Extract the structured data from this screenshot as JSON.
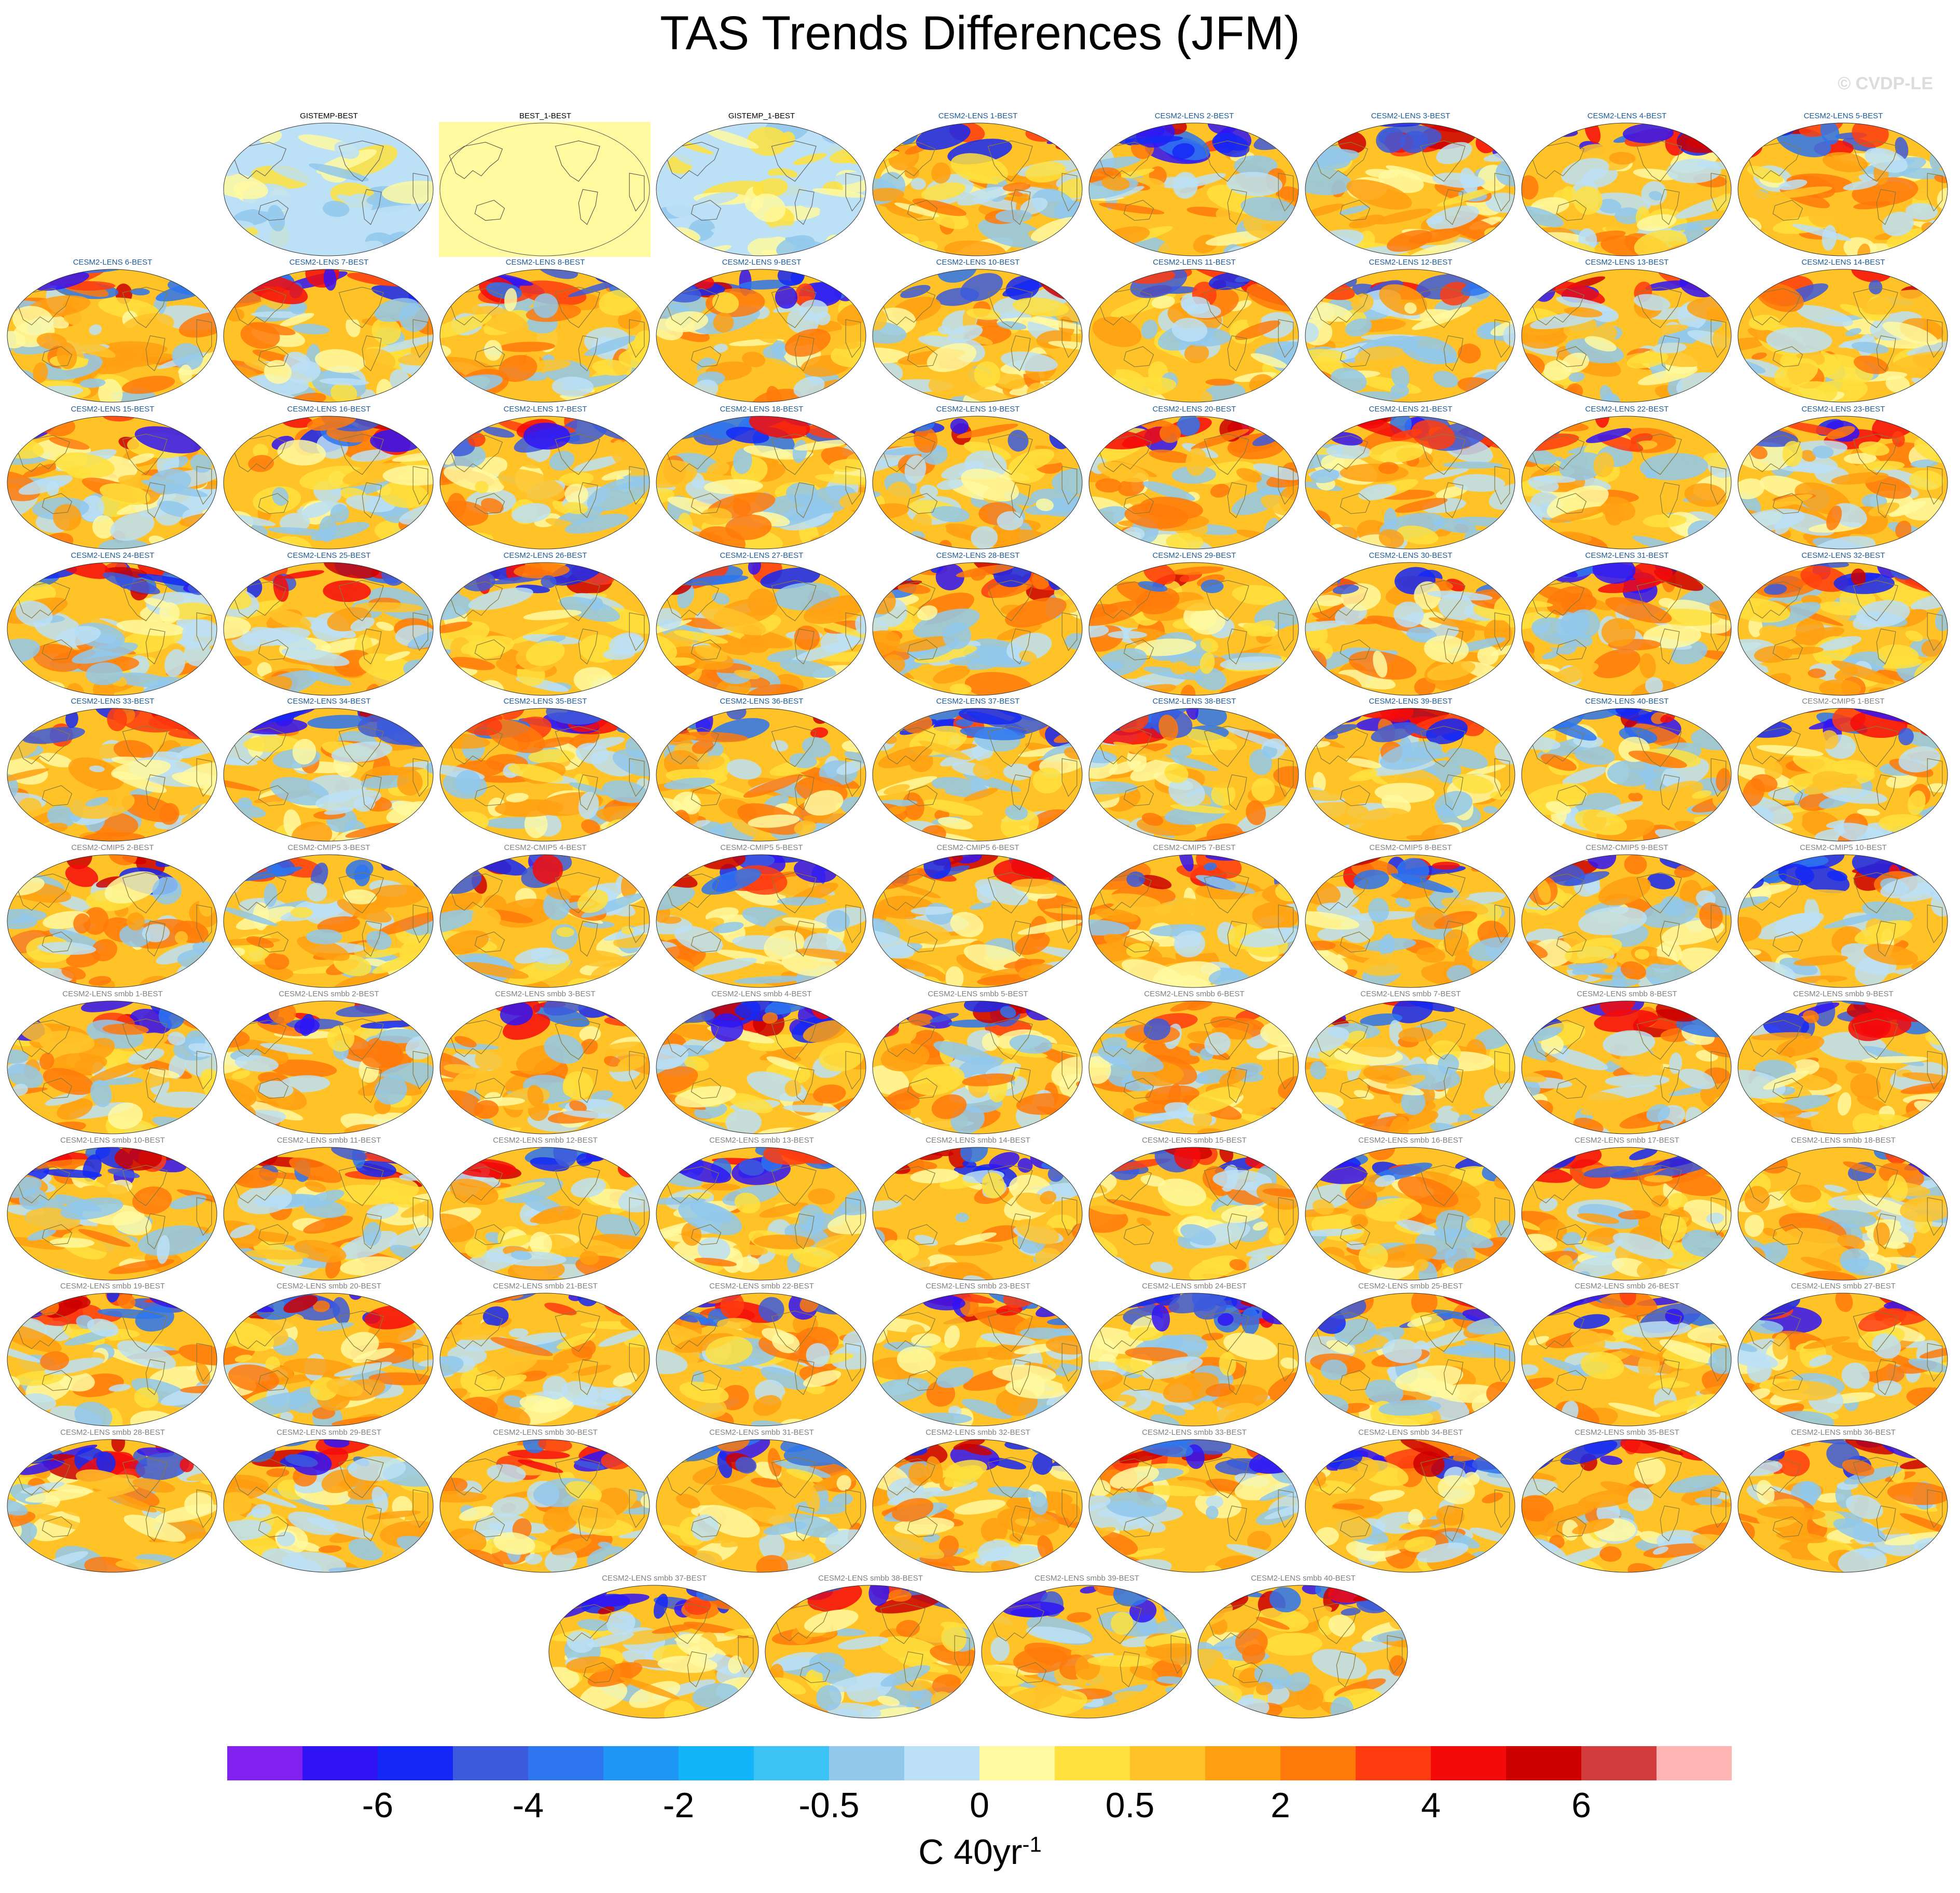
{
  "title": "TAS Trends Differences (JFM)",
  "watermark": "© CVDP-LE",
  "colorbar": {
    "labels": [
      "-6",
      "-4",
      "-2",
      "-0.5",
      "0",
      "0.5",
      "2",
      "4",
      "6"
    ],
    "units": "C 40yr",
    "units_exponent": "-1",
    "colors": [
      "#8220f0",
      "#3014f5",
      "#1428f5",
      "#3c5adc",
      "#2d76f0",
      "#1e96f5",
      "#12b4fa",
      "#3cc3f5",
      "#91c8ec",
      "#bce1f6",
      "#fff9a0",
      "#ffe03c",
      "#ffc328",
      "#ffa010",
      "#ff7a0a",
      "#ff3c0f",
      "#f50a0a",
      "#cd0000",
      "#d23c3c",
      "#ffb4b4"
    ]
  },
  "title_colors": {
    "obs": "#000000",
    "lens": "#1e5a96",
    "other": "#808080"
  },
  "panels": {
    "row1": [
      "GISTEMP-BEST",
      "BEST_1-BEST",
      "GISTEMP_1-BEST",
      "CESM2-LENS 1-BEST",
      "CESM2-LENS 2-BEST",
      "CESM2-LENS 3-BEST",
      "CESM2-LENS 4-BEST",
      "CESM2-LENS 5-BEST"
    ],
    "lens": [
      "CESM2-LENS 6-BEST",
      "CESM2-LENS 7-BEST",
      "CESM2-LENS 8-BEST",
      "CESM2-LENS 9-BEST",
      "CESM2-LENS 10-BEST",
      "CESM2-LENS 11-BEST",
      "CESM2-LENS 12-BEST",
      "CESM2-LENS 13-BEST",
      "CESM2-LENS 14-BEST",
      "CESM2-LENS 15-BEST",
      "CESM2-LENS 16-BEST",
      "CESM2-LENS 17-BEST",
      "CESM2-LENS 18-BEST",
      "CESM2-LENS 19-BEST",
      "CESM2-LENS 20-BEST",
      "CESM2-LENS 21-BEST",
      "CESM2-LENS 22-BEST",
      "CESM2-LENS 23-BEST",
      "CESM2-LENS 24-BEST",
      "CESM2-LENS 25-BEST",
      "CESM2-LENS 26-BEST",
      "CESM2-LENS 27-BEST",
      "CESM2-LENS 28-BEST",
      "CESM2-LENS 29-BEST",
      "CESM2-LENS 30-BEST",
      "CESM2-LENS 31-BEST",
      "CESM2-LENS 32-BEST",
      "CESM2-LENS 33-BEST",
      "CESM2-LENS 34-BEST",
      "CESM2-LENS 35-BEST",
      "CESM2-LENS 36-BEST",
      "CESM2-LENS 37-BEST",
      "CESM2-LENS 38-BEST",
      "CESM2-LENS 39-BEST",
      "CESM2-LENS 40-BEST"
    ],
    "cmip5": [
      "CESM2-CMIP5 1-BEST",
      "CESM2-CMIP5 2-BEST",
      "CESM2-CMIP5 3-BEST",
      "CESM2-CMIP5 4-BEST",
      "CESM2-CMIP5 5-BEST",
      "CESM2-CMIP5 6-BEST",
      "CESM2-CMIP5 7-BEST",
      "CESM2-CMIP5 8-BEST",
      "CESM2-CMIP5 9-BEST",
      "CESM2-CMIP5 10-BEST"
    ],
    "smbb": [
      "CESM2-LENS smbb 1-BEST",
      "CESM2-LENS smbb 2-BEST",
      "CESM2-LENS smbb 3-BEST",
      "CESM2-LENS smbb 4-BEST",
      "CESM2-LENS smbb 5-BEST",
      "CESM2-LENS smbb 6-BEST",
      "CESM2-LENS smbb 7-BEST",
      "CESM2-LENS smbb 8-BEST",
      "CESM2-LENS smbb 9-BEST",
      "CESM2-LENS smbb 10-BEST",
      "CESM2-LENS smbb 11-BEST",
      "CESM2-LENS smbb 12-BEST",
      "CESM2-LENS smbb 13-BEST",
      "CESM2-LENS smbb 14-BEST",
      "CESM2-LENS smbb 15-BEST",
      "CESM2-LENS smbb 16-BEST",
      "CESM2-LENS smbb 17-BEST",
      "CESM2-LENS smbb 18-BEST",
      "CESM2-LENS smbb 19-BEST",
      "CESM2-LENS smbb 20-BEST",
      "CESM2-LENS smbb 21-BEST",
      "CESM2-LENS smbb 22-BEST",
      "CESM2-LENS smbb 23-BEST",
      "CESM2-LENS smbb 24-BEST",
      "CESM2-LENS smbb 25-BEST",
      "CESM2-LENS smbb 26-BEST",
      "CESM2-LENS smbb 27-BEST",
      "CESM2-LENS smbb 28-BEST",
      "CESM2-LENS smbb 29-BEST",
      "CESM2-LENS smbb 30-BEST",
      "CESM2-LENS smbb 31-BEST",
      "CESM2-LENS smbb 32-BEST",
      "CESM2-LENS smbb 33-BEST",
      "CESM2-LENS smbb 34-BEST",
      "CESM2-LENS smbb 35-BEST",
      "CESM2-LENS smbb 36-BEST",
      "CESM2-LENS smbb 37-BEST",
      "CESM2-LENS smbb 38-BEST",
      "CESM2-LENS smbb 39-BEST",
      "CESM2-LENS smbb 40-BEST"
    ]
  },
  "missing_panel": "BEST_1-BEST"
}
